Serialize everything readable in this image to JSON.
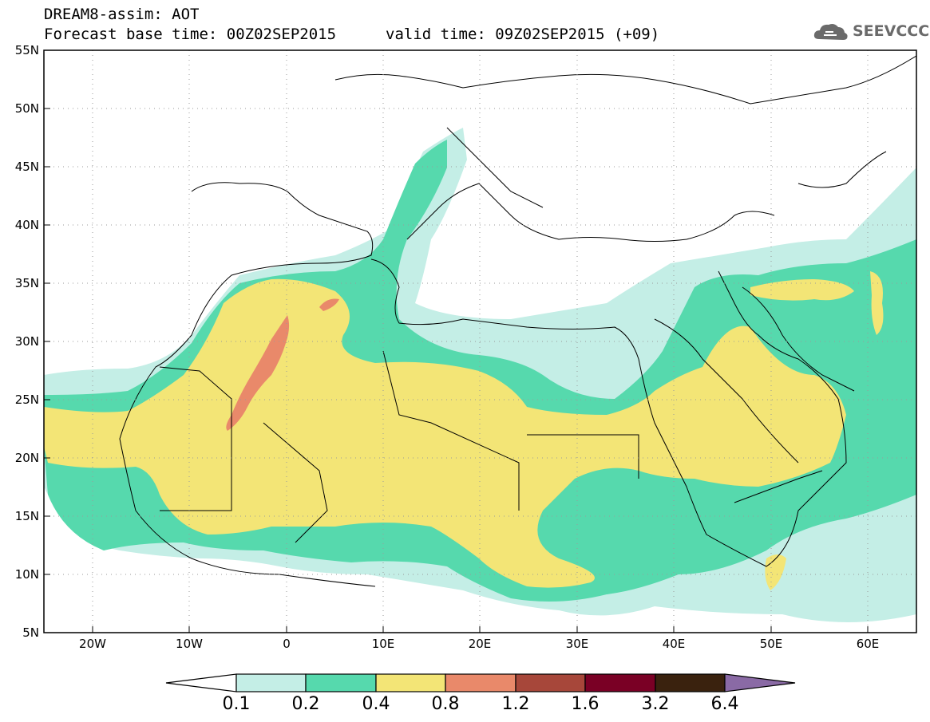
{
  "header": {
    "title_line1": "DREAM8-assim: AOT",
    "title_line2": "Forecast base time: 00Z02SEP2015",
    "valid_time": "valid time: 09Z02SEP2015 (+09)",
    "logo_text": "SEEVCCC"
  },
  "map": {
    "lon_range": [
      -25,
      65
    ],
    "lat_range": [
      5,
      55
    ],
    "lon_ticks": [
      "20W",
      "10W",
      "0",
      "10E",
      "20E",
      "30E",
      "40E",
      "50E",
      "60E"
    ],
    "lat_ticks": [
      "5N",
      "10N",
      "15N",
      "20N",
      "25N",
      "30N",
      "35N",
      "40N",
      "45N",
      "50N",
      "55N"
    ]
  },
  "colorbar": {
    "labels": [
      "0.1",
      "0.2",
      "0.4",
      "0.8",
      "1.2",
      "1.6",
      "3.2",
      "6.4"
    ],
    "colors": [
      "#ffffff",
      "#c4eee6",
      "#56d9ad",
      "#f3e576",
      "#e9896a",
      "#a7473a",
      "#7a0025",
      "#3a220e",
      "#8a6aa5"
    ]
  }
}
